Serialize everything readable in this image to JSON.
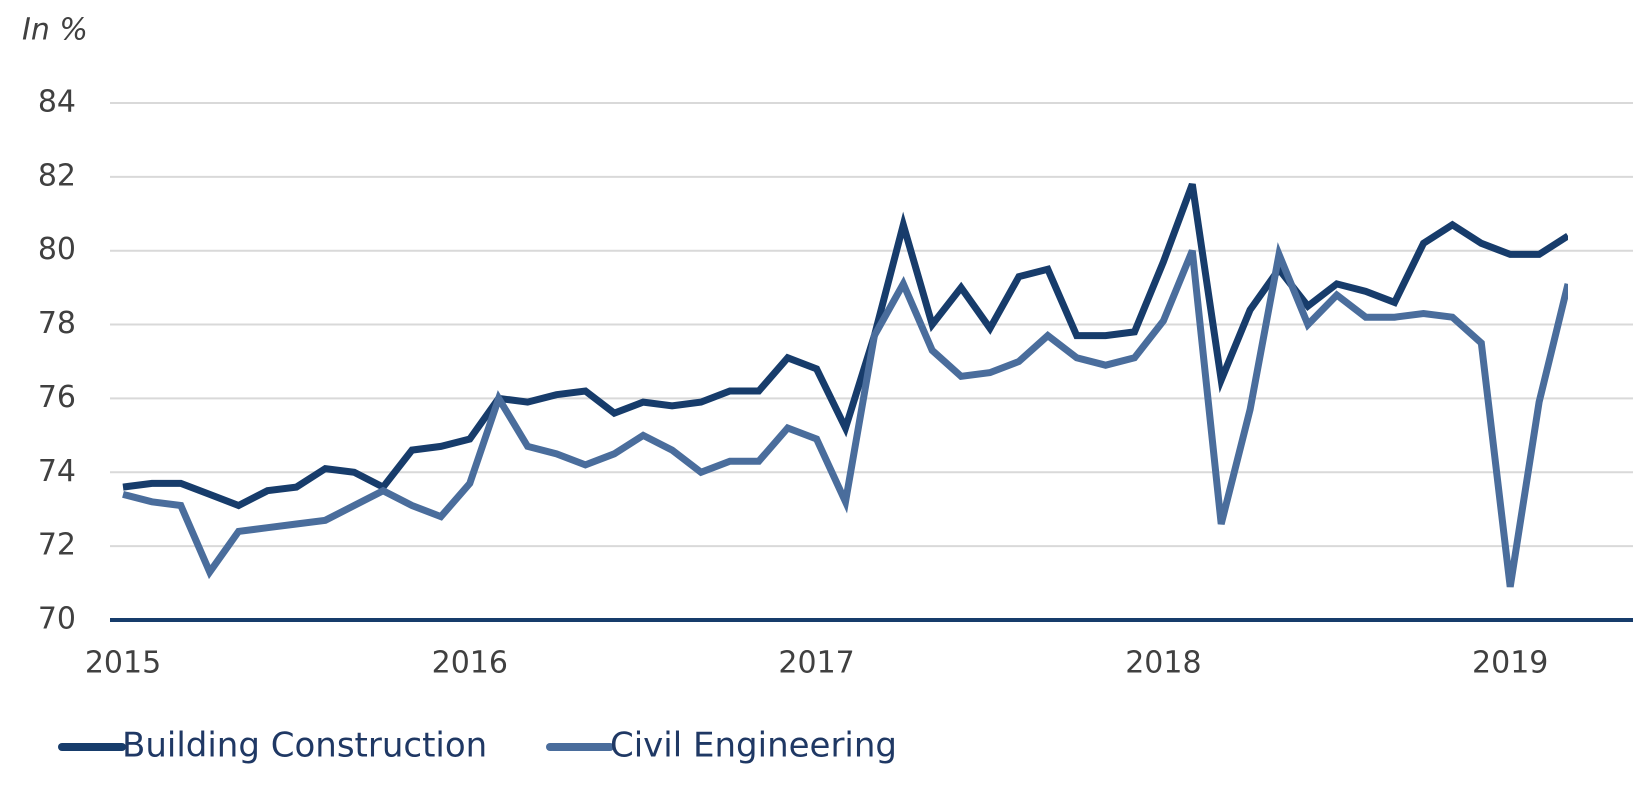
{
  "chart_data": {
    "type": "line",
    "y_axis_label": "In %",
    "categories": [
      "2015",
      null,
      null,
      null,
      null,
      null,
      null,
      null,
      null,
      null,
      null,
      null,
      "2016",
      null,
      null,
      null,
      null,
      null,
      null,
      null,
      null,
      null,
      null,
      null,
      "2017",
      null,
      null,
      null,
      null,
      null,
      null,
      null,
      null,
      null,
      null,
      null,
      "2018",
      null,
      null,
      null,
      null,
      null,
      null,
      null,
      null,
      null,
      null,
      null,
      "2019",
      null,
      null
    ],
    "series": [
      {
        "name": "Building Construction",
        "color": "#173c6b",
        "values": [
          73.6,
          73.7,
          73.7,
          73.4,
          73.1,
          73.5,
          73.6,
          74.1,
          74.0,
          73.6,
          74.6,
          74.7,
          74.9,
          76.0,
          75.9,
          76.1,
          76.2,
          75.6,
          75.9,
          75.8,
          75.9,
          76.2,
          76.2,
          77.1,
          76.8,
          75.2,
          77.7,
          80.7,
          78.0,
          79.0,
          77.9,
          79.3,
          79.5,
          77.7,
          77.7,
          77.8,
          79.7,
          81.8,
          76.5,
          78.4,
          79.5,
          78.5,
          79.1,
          78.9,
          78.6,
          80.2,
          80.7,
          80.2,
          79.9,
          79.9,
          80.4
        ]
      },
      {
        "name": "Civil Engineering",
        "color": "#4a6d9c",
        "values": [
          73.4,
          73.2,
          73.1,
          71.3,
          72.4,
          72.5,
          72.6,
          72.7,
          73.1,
          73.5,
          73.1,
          72.8,
          73.7,
          76.0,
          74.7,
          74.5,
          74.2,
          74.5,
          75.0,
          74.6,
          74.0,
          74.3,
          74.3,
          75.2,
          74.9,
          73.2,
          77.7,
          79.1,
          77.3,
          76.6,
          76.7,
          77.0,
          77.7,
          77.1,
          76.9,
          77.1,
          78.1,
          80.0,
          72.6,
          75.7,
          79.9,
          78.0,
          78.8,
          78.2,
          78.2,
          78.3,
          78.2,
          77.5,
          70.9,
          75.9,
          79.1
        ]
      }
    ],
    "ylim": [
      70,
      85
    ],
    "yticks": [
      70,
      72,
      74,
      76,
      78,
      80,
      82,
      84
    ],
    "grid": true,
    "legend": "bottom"
  }
}
